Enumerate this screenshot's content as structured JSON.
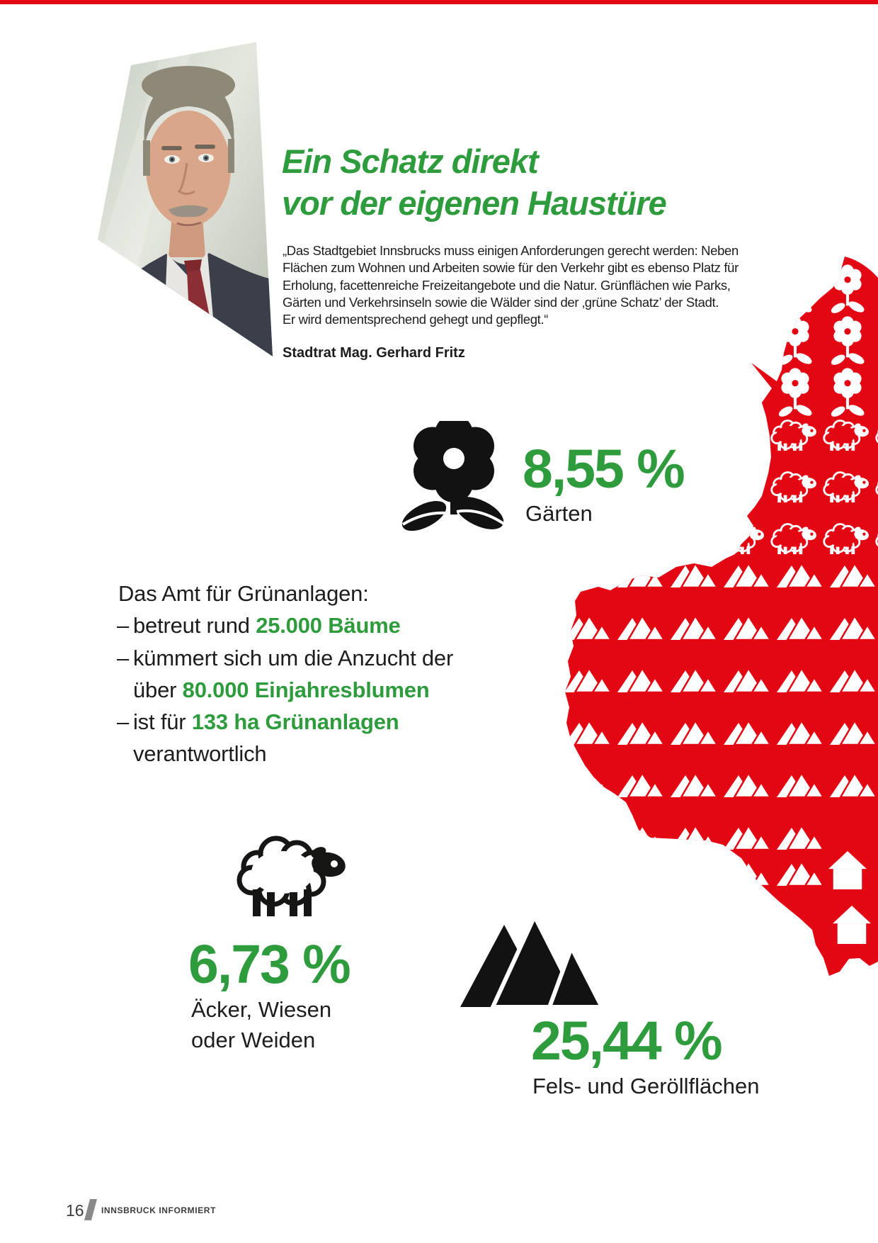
{
  "page": {
    "top_bar_color": "#e30613"
  },
  "colors": {
    "green": "#2e9c3d",
    "red": "#e30613",
    "ink": "#1d1d1b",
    "footer_gray": "#8a8a8a",
    "footer_text": "#3c3c3b"
  },
  "header": {
    "title_line1": "Ein Schatz direkt",
    "title_line2": "vor der eigenen Haustüre",
    "quote_lines": [
      "„Das Stadtgebiet Innsbrucks muss einigen Anforderungen gerecht werden: Neben",
      "Flächen zum Wohnen und Arbeiten sowie für den Verkehr gibt es ebenso Platz für",
      "Erholung, facettenreiche Freizeitangebote und die Natur. Grünflächen wie Parks,",
      "Gärten und Verkehrsinseln sowie die Wälder sind der ‚grüne Schatz’ der Stadt.",
      "Er wird dementsprechend gehegt und gepflegt.“"
    ],
    "author": "Stadtrat Mag. Gerhard Fritz"
  },
  "stats": {
    "gardens": {
      "value": "8,55 %",
      "label": "Gärten",
      "icon": "flower-icon"
    },
    "fields": {
      "value": "6,73 %",
      "label_line1": "Äcker, Wiesen",
      "label_line2": "oder Weiden",
      "icon": "sheep-icon"
    },
    "rocks": {
      "value": "25,44 %",
      "label": "Fels- und Geröllflächen",
      "icon": "mountains-icon"
    }
  },
  "facts": {
    "intro": "Das Amt für Grünanlagen:",
    "dash": "–",
    "line1": {
      "text": "betreut rund ",
      "highlight": "25.000 Bäume"
    },
    "line2": {
      "text": "kümmert sich um die Anzucht der"
    },
    "line3": {
      "text": "über ",
      "highlight": "80.000 Einjahresblumen"
    },
    "line4": {
      "text": "ist für ",
      "highlight": "133 ha Grünanlagen"
    },
    "line5": {
      "text": "verantwortlich"
    }
  },
  "map": {
    "color": "#e30613",
    "icons": [
      "flower-icon",
      "sheep-icon",
      "mountain-icon",
      "house-icon"
    ]
  },
  "footer": {
    "page_number": "16",
    "magazine_name": "INNSBRUCK INFORMIERT"
  }
}
